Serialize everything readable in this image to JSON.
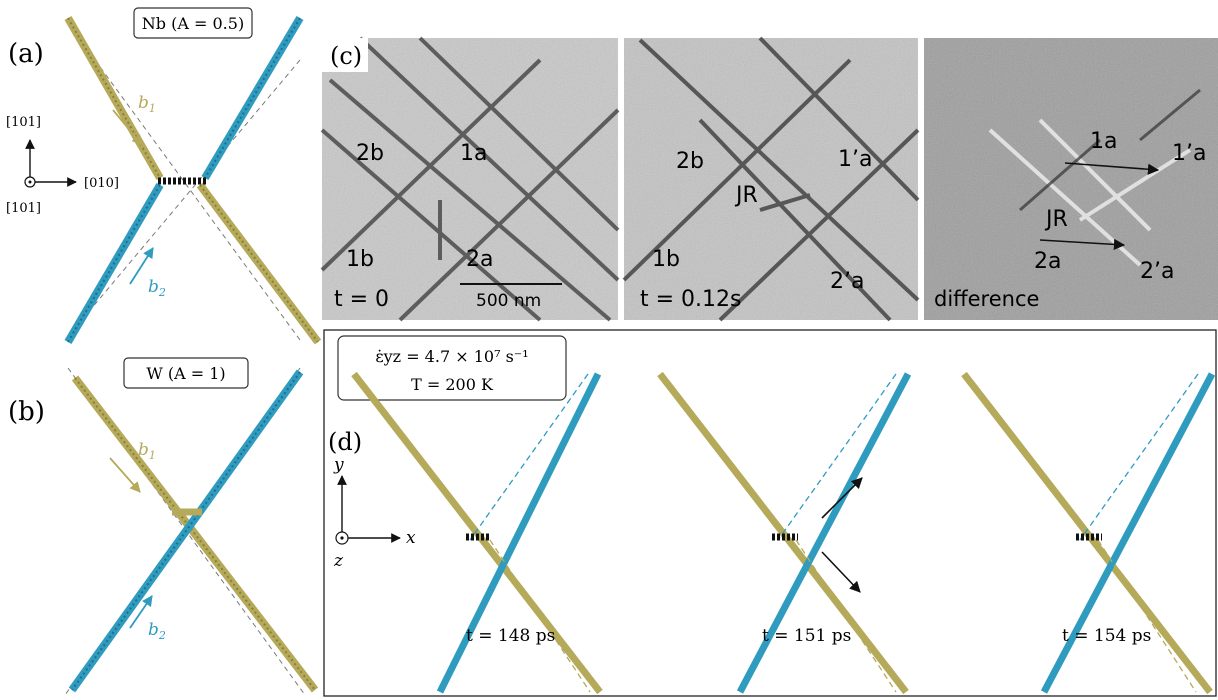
{
  "panel_a": {
    "label": "(a)",
    "title": "Nb (A = 0.5)",
    "b1": "b",
    "b1_sub": "1",
    "b2": "b",
    "b2_sub": "2",
    "axis_up": "[101]",
    "axis_right": "[010]",
    "axis_out": "[101]"
  },
  "panel_b": {
    "label": "(b)",
    "title": "W (A = 1)",
    "b1": "b",
    "b1_sub": "1",
    "b2": "b",
    "b2_sub": "2"
  },
  "panel_c": {
    "label": "(c)",
    "image1": {
      "labels": [
        "2b",
        "1a",
        "1b",
        "2a"
      ],
      "time": "t = 0",
      "scale": "500 nm"
    },
    "image2": {
      "labels": [
        "2b",
        "JR",
        "1’a",
        "1b",
        "2’a"
      ],
      "time": "t = 0.12s"
    },
    "image3": {
      "labels": [
        "1a",
        "1’a",
        "JR",
        "2a",
        "2’a"
      ],
      "caption": "difference"
    }
  },
  "panel_d": {
    "label": "(d)",
    "rate_line": "ε̇yz = 4.7 × 10⁷ s⁻¹",
    "temp_line": "T = 200 K",
    "axis_y": "y",
    "axis_x": "x",
    "axis_z": "z",
    "times": [
      "t = 148 ps",
      "t = 151 ps",
      "t = 154 ps"
    ]
  },
  "colors": {
    "olive": "#b5a95a",
    "teal": "#2f9bbf",
    "core": "#111111",
    "dashed": "#7a7a7a"
  }
}
